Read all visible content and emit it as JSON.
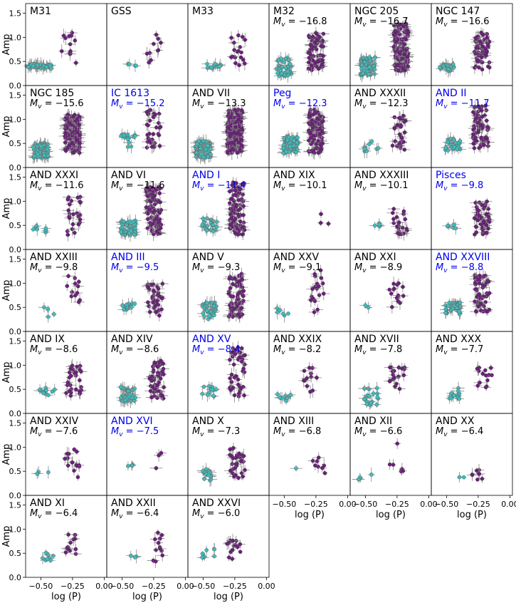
{
  "figure": {
    "ylabel": "Amp",
    "xlabel": "log (P)",
    "xticks": [
      "−0.50",
      "−0.25",
      "0.00"
    ],
    "yticks": [
      "0.0",
      "0.5",
      "1.0",
      "1.5"
    ],
    "colors": {
      "fundamental": "#6b1f7a",
      "first_overtone": "#3fbdbd",
      "errorbar": "#888888",
      "highlight": "#0000ee"
    }
  },
  "chart_data": {
    "type": "scatter",
    "xlim": [
      -0.62,
      0.02
    ],
    "ylim": [
      0.0,
      1.7
    ],
    "xlabel": "log (P)",
    "ylabel": "Amp",
    "grid": false,
    "panels": [
      {
        "name": "M31",
        "mv": "",
        "highlight": false,
        "rrc": [
          [
            -0.55,
            0.36,
            0.45,
            30
          ],
          [
            -0.45,
            0.35,
            0.45,
            20
          ]
        ],
        "rrab": [
          [
            -0.28,
            0.45,
            1.1,
            12
          ]
        ]
      },
      {
        "name": "GSS",
        "mv": "",
        "highlight": false,
        "rrc": [
          [
            -0.42,
            0.4,
            0.45,
            4
          ]
        ],
        "rrab": [
          [
            -0.25,
            0.45,
            1.1,
            10
          ]
        ]
      },
      {
        "name": "M33",
        "mv": "",
        "highlight": false,
        "rrc": [
          [
            -0.42,
            0.35,
            0.45,
            12
          ]
        ],
        "rrab": [
          [
            -0.22,
            0.4,
            1.1,
            18
          ]
        ]
      },
      {
        "name": "M32",
        "mv": "−16.8",
        "highlight": false,
        "rrc": [
          [
            -0.5,
            0.2,
            0.6,
            40
          ]
        ],
        "rrab": [
          [
            -0.25,
            0.3,
            1.1,
            70
          ]
        ]
      },
      {
        "name": "NGC 205",
        "mv": "−16.7",
        "highlight": false,
        "rrc": [
          [
            -0.48,
            0.2,
            0.6,
            60
          ]
        ],
        "rrab": [
          [
            -0.22,
            0.3,
            1.3,
            150
          ]
        ]
      },
      {
        "name": "NGC 147",
        "mv": "−16.6",
        "highlight": false,
        "rrc": [
          [
            -0.5,
            0.3,
            0.45,
            25
          ]
        ],
        "rrab": [
          [
            -0.22,
            0.3,
            1.1,
            60
          ]
        ]
      },
      {
        "name": "NGC 185",
        "mv": "−15.6",
        "highlight": false,
        "rrc": [
          [
            -0.5,
            0.2,
            0.5,
            80
          ]
        ],
        "rrab": [
          [
            -0.25,
            0.3,
            1.1,
            160
          ]
        ]
      },
      {
        "name": "IC 1613",
        "mv": "−15.2",
        "highlight": true,
        "rrc": [
          [
            -0.45,
            0.4,
            0.7,
            15
          ]
        ],
        "rrab": [
          [
            -0.25,
            0.4,
            1.2,
            35
          ]
        ]
      },
      {
        "name": "AND VII",
        "mv": "−13.3",
        "highlight": false,
        "rrc": [
          [
            -0.5,
            0.2,
            0.55,
            100
          ]
        ],
        "rrab": [
          [
            -0.25,
            0.3,
            1.2,
            200
          ]
        ]
      },
      {
        "name": "Peg",
        "mv": "−12.3",
        "highlight": true,
        "rrc": [
          [
            -0.45,
            0.3,
            0.65,
            70
          ]
        ],
        "rrab": [
          [
            -0.25,
            0.3,
            1.2,
            110
          ]
        ]
      },
      {
        "name": "AND XXXII",
        "mv": "−12.3",
        "highlight": false,
        "rrc": [
          [
            -0.45,
            0.3,
            0.55,
            8
          ]
        ],
        "rrab": [
          [
            -0.23,
            0.35,
            1.1,
            30
          ]
        ]
      },
      {
        "name": "AND II",
        "mv": "−11.7",
        "highlight": true,
        "rrc": [
          [
            -0.45,
            0.35,
            0.6,
            30
          ]
        ],
        "rrab": [
          [
            -0.23,
            0.4,
            1.3,
            70
          ]
        ]
      },
      {
        "name": "AND XXXI",
        "mv": "−11.6",
        "highlight": false,
        "rrc": [
          [
            -0.5,
            0.35,
            0.5,
            8
          ]
        ],
        "rrab": [
          [
            -0.24,
            0.3,
            1.1,
            25
          ]
        ]
      },
      {
        "name": "AND VI",
        "mv": "−11.6",
        "highlight": false,
        "rrc": [
          [
            -0.45,
            0.3,
            0.6,
            50
          ]
        ],
        "rrab": [
          [
            -0.25,
            0.3,
            1.3,
            100
          ]
        ]
      },
      {
        "name": "AND I",
        "mv": "−11.4",
        "highlight": true,
        "rrc": [
          [
            -0.45,
            0.35,
            0.65,
            25
          ]
        ],
        "rrab": [
          [
            -0.23,
            0.3,
            1.4,
            100
          ]
        ]
      },
      {
        "name": "AND XIX",
        "mv": "−10.1",
        "highlight": false,
        "rrc": [],
        "rrab": [
          [
            -0.2,
            0.5,
            0.9,
            3
          ]
        ]
      },
      {
        "name": "AND XXXIII",
        "mv": "−10.1",
        "highlight": false,
        "rrc": [
          [
            -0.43,
            0.4,
            0.55,
            5
          ]
        ],
        "rrab": [
          [
            -0.23,
            0.3,
            0.9,
            22
          ]
        ]
      },
      {
        "name": "Pisces",
        "mv": "−9.8",
        "highlight": true,
        "rrc": [
          [
            -0.45,
            0.35,
            0.6,
            6
          ]
        ],
        "rrab": [
          [
            -0.22,
            0.3,
            1.0,
            50
          ]
        ]
      },
      {
        "name": "AND XXIII",
        "mv": "−9.8",
        "highlight": false,
        "rrc": [
          [
            -0.45,
            0.3,
            0.5,
            4
          ]
        ],
        "rrab": [
          [
            -0.25,
            0.45,
            1.3,
            12
          ]
        ]
      },
      {
        "name": "AND III",
        "mv": "−9.5",
        "highlight": true,
        "rrc": [
          [
            -0.45,
            0.45,
            0.6,
            12
          ]
        ],
        "rrab": [
          [
            -0.24,
            0.3,
            1.0,
            40
          ]
        ]
      },
      {
        "name": "AND V",
        "mv": "−9.3",
        "highlight": false,
        "rrc": [
          [
            -0.45,
            0.25,
            0.6,
            35
          ]
        ],
        "rrab": [
          [
            -0.24,
            0.3,
            1.2,
            70
          ]
        ]
      },
      {
        "name": "AND XXV",
        "mv": "−9.1",
        "highlight": false,
        "rrc": [
          [
            -0.5,
            0.3,
            0.5,
            6
          ]
        ],
        "rrab": [
          [
            -0.24,
            0.3,
            1.3,
            18
          ]
        ]
      },
      {
        "name": "AND XXI",
        "mv": "−8.9",
        "highlight": false,
        "rrc": [
          [
            -0.48,
            0.45,
            0.55,
            2
          ]
        ],
        "rrab": [
          [
            -0.25,
            0.5,
            1.0,
            15
          ]
        ]
      },
      {
        "name": "AND XXVIII",
        "mv": "−8.8",
        "highlight": true,
        "rrc": [
          [
            -0.45,
            0.35,
            0.6,
            40
          ]
        ],
        "rrab": [
          [
            -0.22,
            0.4,
            1.2,
            60
          ]
        ]
      },
      {
        "name": "AND IX",
        "mv": "−8.6",
        "highlight": false,
        "rrc": [
          [
            -0.45,
            0.35,
            0.55,
            12
          ]
        ],
        "rrab": [
          [
            -0.24,
            0.35,
            1.0,
            30
          ]
        ]
      },
      {
        "name": "AND XIV",
        "mv": "−8.6",
        "highlight": false,
        "rrc": [
          [
            -0.45,
            0.25,
            0.55,
            40
          ]
        ],
        "rrab": [
          [
            -0.23,
            0.3,
            1.1,
            50
          ]
        ]
      },
      {
        "name": "AND XV",
        "mv": "−8.4",
        "highlight": true,
        "rrc": [
          [
            -0.45,
            0.35,
            0.6,
            12
          ]
        ],
        "rrab": [
          [
            -0.23,
            0.35,
            1.4,
            45
          ]
        ]
      },
      {
        "name": "AND XXIX",
        "mv": "−8.2",
        "highlight": false,
        "rrc": [
          [
            -0.5,
            0.25,
            0.4,
            10
          ]
        ],
        "rrab": [
          [
            -0.3,
            0.35,
            1.0,
            12
          ]
        ]
      },
      {
        "name": "AND XVII",
        "mv": "−7.8",
        "highlight": false,
        "rrc": [
          [
            -0.45,
            0.15,
            0.55,
            20
          ]
        ],
        "rrab": [
          [
            -0.25,
            0.5,
            1.0,
            20
          ]
        ]
      },
      {
        "name": "AND XXX",
        "mv": "−7.7",
        "highlight": false,
        "rrc": [
          [
            -0.45,
            0.3,
            0.55,
            12
          ]
        ],
        "rrab": [
          [
            -0.2,
            0.5,
            1.0,
            15
          ]
        ]
      },
      {
        "name": "AND XXIV",
        "mv": "−7.6",
        "highlight": false,
        "rrc": [
          [
            -0.47,
            0.42,
            0.5,
            4
          ]
        ],
        "rrab": [
          [
            -0.25,
            0.3,
            1.0,
            15
          ]
        ]
      },
      {
        "name": "AND XVI",
        "mv": "−7.5",
        "highlight": true,
        "rrc": [
          [
            -0.42,
            0.5,
            0.65,
            4
          ]
        ],
        "rrab": [
          [
            -0.22,
            0.5,
            1.05,
            3
          ]
        ]
      },
      {
        "name": "AND X",
        "mv": "−7.3",
        "highlight": false,
        "rrc": [
          [
            -0.45,
            0.3,
            0.55,
            15
          ]
        ],
        "rrab": [
          [
            -0.23,
            0.3,
            1.0,
            35
          ]
        ]
      },
      {
        "name": "AND XIII",
        "mv": "−6.8",
        "highlight": false,
        "rrc": [
          [
            -0.42,
            0.55,
            0.58,
            1
          ]
        ],
        "rrab": [
          [
            -0.23,
            0.4,
            0.85,
            8
          ]
        ]
      },
      {
        "name": "AND XII",
        "mv": "−6.6",
        "highlight": false,
        "rrc": [
          [
            -0.5,
            0.3,
            0.5,
            4
          ]
        ],
        "rrab": [
          [
            -0.25,
            0.5,
            1.15,
            6
          ]
        ]
      },
      {
        "name": "AND XX",
        "mv": "−6.4",
        "highlight": false,
        "rrc": [
          [
            -0.4,
            0.35,
            0.42,
            2
          ]
        ],
        "rrab": [
          [
            -0.25,
            0.3,
            0.6,
            8
          ]
        ]
      },
      {
        "name": "AND XI",
        "mv": "−6.4",
        "highlight": false,
        "rrc": [
          [
            -0.45,
            0.35,
            0.55,
            8
          ]
        ],
        "rrab": [
          [
            -0.25,
            0.45,
            0.9,
            12
          ]
        ]
      },
      {
        "name": "AND XXII",
        "mv": "−6.4",
        "highlight": false,
        "rrc": [
          [
            -0.4,
            0.35,
            0.45,
            3
          ]
        ],
        "rrab": [
          [
            -0.2,
            0.3,
            0.95,
            12
          ]
        ]
      },
      {
        "name": "AND XXVI",
        "mv": "−6.0",
        "highlight": false,
        "rrc": [
          [
            -0.45,
            0.4,
            0.6,
            8
          ]
        ],
        "rrab": [
          [
            -0.25,
            0.35,
            0.8,
            15
          ]
        ]
      }
    ]
  }
}
